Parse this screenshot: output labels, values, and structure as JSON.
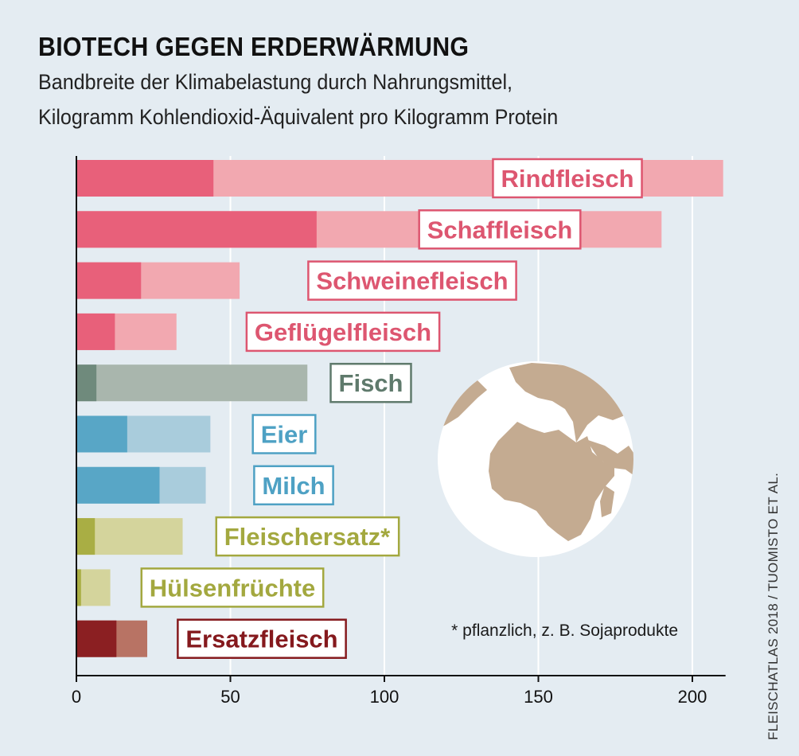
{
  "chart_data": {
    "type": "bar",
    "orientation": "horizontal",
    "title": "BIOTECH GEGEN ERDERWÄRMUNG",
    "subtitle_lines": [
      "Bandbreite der Klimabelastung durch Nahrungsmittel,",
      "Kilogramm Kohlendioxid-Äquivalent pro Kilogramm Protein"
    ],
    "categories": [
      "Rindfleisch",
      "Schaffleisch",
      "Schweinefleisch",
      "Geflügelfleisch",
      "Fisch",
      "Eier",
      "Milch",
      "Fleischersatz*",
      "Hülsenfrüchte",
      "Ersatzfleisch"
    ],
    "series": [
      {
        "values": [
          44.5,
          78,
          21,
          12.5,
          6.5,
          16.5,
          27,
          6,
          1.5,
          13
        ]
      },
      {
        "values": [
          210,
          190,
          53,
          32.5,
          75,
          43.5,
          42,
          34.5,
          11,
          23
        ]
      }
    ],
    "colors": {
      "dark": [
        "#e8607a",
        "#e8607a",
        "#e8607a",
        "#e8607a",
        "#6f8a7c",
        "#58a6c6",
        "#58a6c6",
        "#a9ae44",
        "#a9ae44",
        "#8b1f22"
      ],
      "light": [
        "#f2a8b0",
        "#f2a8b0",
        "#f2a8b0",
        "#f2a8b0",
        "#a9b6ad",
        "#a9ccdc",
        "#a9ccdc",
        "#d4d49c",
        "#d4d49c",
        "#b87364"
      ],
      "label": [
        "#dd5670",
        "#dd5670",
        "#dd5670",
        "#dd5670",
        "#5f7a6c",
        "#4ea1c4",
        "#4ea1c4",
        "#a3a83f",
        "#a3a83f",
        "#85191d"
      ],
      "globe_land": "#c4ab91",
      "background": "#e4ecf2"
    },
    "xlim": [
      0,
      210
    ],
    "xticks": [
      "0",
      "50",
      "100",
      "150",
      "200"
    ],
    "xtick_values": [
      0,
      50,
      100,
      150,
      200
    ],
    "grid": true,
    "footnote": "* pflanzlich, z. B. Sojaprodukte",
    "source": "FLEISCHATLAS 2018 / TUOMISTO ET AL.",
    "decoration": "globe-icon"
  }
}
